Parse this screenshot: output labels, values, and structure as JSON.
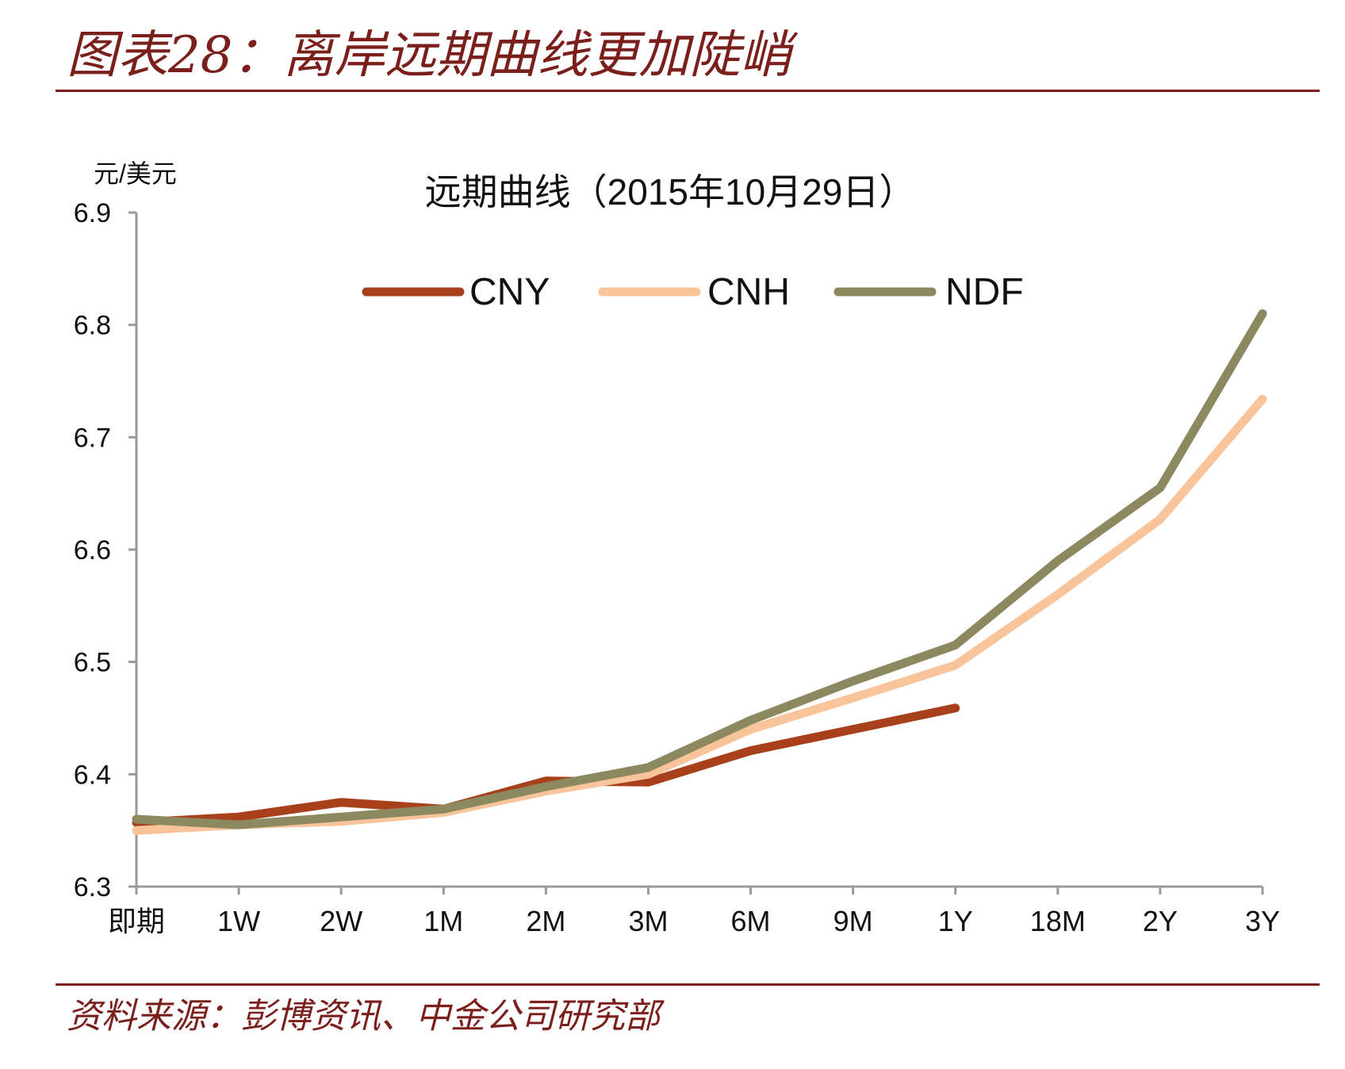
{
  "figure": {
    "title": "图表28：离岸远期曲线更加陡峭",
    "source": "资料来源：彭博资讯、中金公司研究部"
  },
  "chart_data": {
    "type": "line",
    "title": "远期曲线（2015年10月29日）",
    "ylabel": "元/美元",
    "xlabel": "",
    "categories": [
      "即期",
      "1W",
      "2W",
      "1M",
      "2M",
      "3M",
      "6M",
      "9M",
      "1Y",
      "18M",
      "2Y",
      "3Y"
    ],
    "ylim": [
      6.3,
      6.9
    ],
    "yticks": [
      6.3,
      6.4,
      6.5,
      6.6,
      6.7,
      6.8,
      6.9
    ],
    "ytick_labels": [
      "6.3",
      "6.4",
      "6.5",
      "6.6",
      "6.7",
      "6.8",
      "6.9"
    ],
    "grid": false,
    "legend_position": "top",
    "series": [
      {
        "name": "CNY",
        "color": "#a9401c",
        "values": [
          6.357,
          6.362,
          6.375,
          6.369,
          6.394,
          6.393,
          6.421,
          6.44,
          6.459,
          null,
          null,
          null
        ]
      },
      {
        "name": "CNH",
        "color": "#f9c49a",
        "values": [
          6.35,
          6.355,
          6.358,
          6.366,
          6.385,
          6.4,
          6.44,
          6.468,
          6.497,
          6.56,
          6.627,
          6.734
        ]
      },
      {
        "name": "NDF",
        "color": "#8c8860",
        "values": [
          6.36,
          6.355,
          6.362,
          6.369,
          6.389,
          6.406,
          6.448,
          6.483,
          6.515,
          6.59,
          6.655,
          6.81
        ]
      }
    ]
  }
}
